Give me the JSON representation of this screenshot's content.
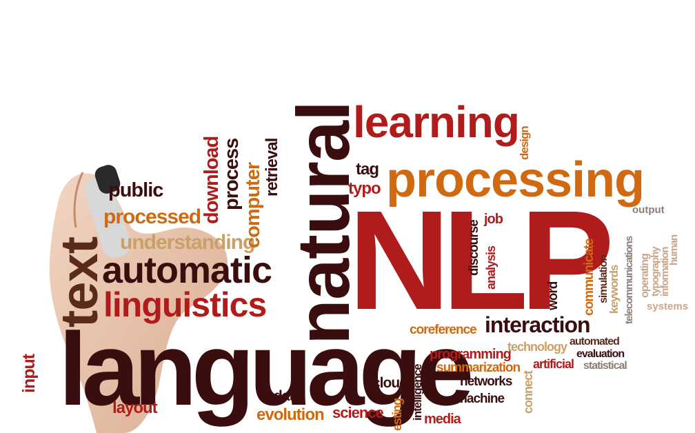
{
  "words": {
    "natural": "natural",
    "learning": "learning",
    "processing": "processing",
    "nlp": "NLP",
    "language": "language",
    "text": "text",
    "automatic": "automatic",
    "linguistics": "linguistics",
    "public": "public",
    "processed": "processed",
    "understanding": "understanding",
    "download": "download",
    "process": "process",
    "computer": "computer",
    "retrieval": "retrieval",
    "tag": "tag",
    "typo": "typo",
    "design": "design",
    "discourse": "discourse",
    "job": "job",
    "analysis": "analysis",
    "word": "word",
    "communicate": "communicate",
    "simulation": "simulation",
    "keywords": "keywords",
    "telecommunications": "telecommunications",
    "output": "output",
    "operating": "operating",
    "typography": "typography",
    "information": "information",
    "human": "human",
    "systems": "systems",
    "coreference": "coreference",
    "interaction": "interaction",
    "programming": "programming",
    "technology": "technology",
    "automated": "automated",
    "evaluation": "evaluation",
    "statistical": "statistical",
    "summarization": "summarization",
    "artificial": "artificial",
    "networks": "networks",
    "machine": "machine",
    "connect": "connect",
    "intelligence": "intelligence",
    "cloud": "cloud",
    "data": "data",
    "evolution": "evolution",
    "science": "science",
    "testing": "esting",
    "media": "media",
    "input": "input",
    "layout": "layout"
  },
  "colors": {
    "dark": "#3a0d0f",
    "red": "#b01c1c",
    "orange": "#d06a12",
    "gold": "#c9a06a",
    "brown": "#5a2a1a",
    "tan": "#c9a58a",
    "gray": "#8b7d78"
  }
}
